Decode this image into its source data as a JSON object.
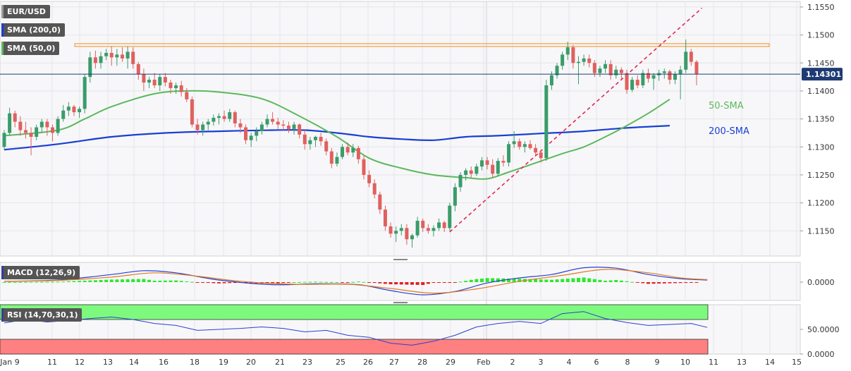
{
  "instrument": "EUR/USD",
  "legend": {
    "sma200": "SMA (200,0)",
    "sma50": "SMA (50,0)",
    "macd": "MACD (12,26,9)",
    "rsi": "RSI (14,70,30,1)"
  },
  "annotations": {
    "sma50": "50-SMA",
    "sma200": "200-SMA"
  },
  "current_price": "1.14301",
  "colors": {
    "up": "#3a9c6a",
    "down": "#e0605e",
    "sma50": "#5cb85c",
    "sma200": "#1a3fd1",
    "trendline": "#e0294a",
    "resistance": "#f0a040",
    "rsi_overbought": "#7dfa7d",
    "rsi_oversold": "#ff8080"
  },
  "chart_data": {
    "type": "candlestick",
    "y_ticks": [
      "1.1550",
      "1.1500",
      "1.1450",
      "1.1400",
      "1.1350",
      "1.1300",
      "1.1250",
      "1.1200",
      "1.1150"
    ],
    "ylim": [
      1.1105,
      1.156
    ],
    "x_labels": [
      "Jan 9",
      "11",
      "12",
      "13",
      "14",
      "16",
      "18",
      "19",
      "20",
      "21",
      "23",
      "25",
      "26",
      "27",
      "28",
      "29",
      "Feb",
      "2",
      "3",
      "4",
      "6",
      "8",
      "9",
      "10",
      "11",
      "13",
      "14",
      "15"
    ],
    "resistance_level": 1.1482,
    "sma50": [
      [
        0,
        1.132
      ],
      [
        10,
        1.133
      ],
      [
        15,
        1.135
      ],
      [
        20,
        1.1372
      ],
      [
        28,
        1.1395
      ],
      [
        34,
        1.14
      ],
      [
        40,
        1.1398
      ],
      [
        48,
        1.1386
      ],
      [
        55,
        1.1355
      ],
      [
        62,
        1.1318
      ],
      [
        68,
        1.128
      ],
      [
        74,
        1.1262
      ],
      [
        80,
        1.125
      ],
      [
        86,
        1.1245
      ],
      [
        90,
        1.1243
      ],
      [
        94,
        1.1255
      ],
      [
        98,
        1.1268
      ],
      [
        104,
        1.1288
      ],
      [
        108,
        1.13
      ],
      [
        112,
        1.1318
      ],
      [
        116,
        1.1338
      ],
      [
        120,
        1.136
      ],
      [
        124,
        1.1385
      ]
    ],
    "sma200": [
      [
        0,
        1.1295
      ],
      [
        10,
        1.1305
      ],
      [
        20,
        1.1318
      ],
      [
        30,
        1.1325
      ],
      [
        40,
        1.1328
      ],
      [
        50,
        1.133
      ],
      [
        56,
        1.133
      ],
      [
        62,
        1.1325
      ],
      [
        68,
        1.1318
      ],
      [
        74,
        1.1314
      ],
      [
        80,
        1.1312
      ],
      [
        86,
        1.1318
      ],
      [
        92,
        1.132
      ],
      [
        100,
        1.1324
      ],
      [
        108,
        1.1328
      ],
      [
        116,
        1.1334
      ],
      [
        124,
        1.1338
      ]
    ],
    "trendline": [
      [
        83,
        1.1148
      ],
      [
        130,
        1.1548
      ]
    ],
    "candles": [
      [
        1.13,
        1.133,
        1.1295,
        1.1325
      ],
      [
        1.1325,
        1.137,
        1.132,
        1.136
      ],
      [
        1.136,
        1.1365,
        1.1335,
        1.1345
      ],
      [
        1.1345,
        1.1355,
        1.132,
        1.133
      ],
      [
        1.133,
        1.1345,
        1.1315,
        1.1325
      ],
      [
        1.1325,
        1.1335,
        1.1285,
        1.1318
      ],
      [
        1.1318,
        1.134,
        1.1312,
        1.1335
      ],
      [
        1.1335,
        1.135,
        1.1325,
        1.1345
      ],
      [
        1.1345,
        1.135,
        1.132,
        1.1335
      ],
      [
        1.1335,
        1.134,
        1.131,
        1.1325
      ],
      [
        1.1325,
        1.1355,
        1.132,
        1.135
      ],
      [
        1.135,
        1.1375,
        1.1345,
        1.1365
      ],
      [
        1.1365,
        1.138,
        1.1355,
        1.1372
      ],
      [
        1.1372,
        1.1375,
        1.1355,
        1.1362
      ],
      [
        1.1362,
        1.1372,
        1.1352,
        1.1368
      ],
      [
        1.1368,
        1.143,
        1.136,
        1.1425
      ],
      [
        1.1425,
        1.147,
        1.1415,
        1.146
      ],
      [
        1.146,
        1.1472,
        1.144,
        1.145
      ],
      [
        1.145,
        1.147,
        1.144,
        1.1462
      ],
      [
        1.1462,
        1.1475,
        1.1455,
        1.1468
      ],
      [
        1.1468,
        1.148,
        1.1445,
        1.146
      ],
      [
        1.146,
        1.1475,
        1.1445,
        1.1465
      ],
      [
        1.1465,
        1.1478,
        1.1452,
        1.1458
      ],
      [
        1.1458,
        1.148,
        1.144,
        1.147
      ],
      [
        1.147,
        1.1478,
        1.144,
        1.1448
      ],
      [
        1.1448,
        1.1452,
        1.142,
        1.143
      ],
      [
        1.143,
        1.144,
        1.14,
        1.1415
      ],
      [
        1.1415,
        1.1425,
        1.1405,
        1.142
      ],
      [
        1.142,
        1.1432,
        1.1405,
        1.141
      ],
      [
        1.141,
        1.143,
        1.14,
        1.1425
      ],
      [
        1.1425,
        1.1432,
        1.1408,
        1.1415
      ],
      [
        1.1415,
        1.142,
        1.1395,
        1.1405
      ],
      [
        1.1405,
        1.1415,
        1.1395,
        1.141
      ],
      [
        1.141,
        1.1418,
        1.139,
        1.1398
      ],
      [
        1.1398,
        1.1405,
        1.138,
        1.1385
      ],
      [
        1.1385,
        1.139,
        1.1335,
        1.134
      ],
      [
        1.134,
        1.135,
        1.1322,
        1.133
      ],
      [
        1.133,
        1.1345,
        1.132,
        1.134
      ],
      [
        1.134,
        1.135,
        1.133,
        1.1345
      ],
      [
        1.1345,
        1.1358,
        1.1338,
        1.1352
      ],
      [
        1.1352,
        1.136,
        1.134,
        1.1355
      ],
      [
        1.1355,
        1.1365,
        1.1345,
        1.135
      ],
      [
        1.135,
        1.1368,
        1.1345,
        1.1362
      ],
      [
        1.1362,
        1.1365,
        1.1335,
        1.1342
      ],
      [
        1.1342,
        1.135,
        1.1325,
        1.1335
      ],
      [
        1.1335,
        1.134,
        1.1305,
        1.1312
      ],
      [
        1.1312,
        1.1325,
        1.13,
        1.132
      ],
      [
        1.132,
        1.1335,
        1.131,
        1.1328
      ],
      [
        1.1328,
        1.1345,
        1.1322,
        1.134
      ],
      [
        1.134,
        1.1358,
        1.1335,
        1.135
      ],
      [
        1.135,
        1.1362,
        1.134,
        1.1345
      ],
      [
        1.1345,
        1.1352,
        1.1332,
        1.134
      ],
      [
        1.134,
        1.1348,
        1.133,
        1.1338
      ],
      [
        1.1338,
        1.1345,
        1.1325,
        1.1332
      ],
      [
        1.1332,
        1.1345,
        1.1322,
        1.134
      ],
      [
        1.134,
        1.1342,
        1.1315,
        1.1322
      ],
      [
        1.1322,
        1.133,
        1.1295,
        1.1305
      ],
      [
        1.1305,
        1.1318,
        1.1295,
        1.1312
      ],
      [
        1.1312,
        1.132,
        1.13,
        1.1318
      ],
      [
        1.1318,
        1.1325,
        1.1302,
        1.131
      ],
      [
        1.131,
        1.1315,
        1.1285,
        1.1292
      ],
      [
        1.1292,
        1.1298,
        1.1262,
        1.127
      ],
      [
        1.127,
        1.129,
        1.1265,
        1.1282
      ],
      [
        1.1282,
        1.1305,
        1.1278,
        1.13
      ],
      [
        1.13,
        1.1308,
        1.1285,
        1.129
      ],
      [
        1.129,
        1.1305,
        1.1282,
        1.1298
      ],
      [
        1.1298,
        1.1302,
        1.127,
        1.1278
      ],
      [
        1.1278,
        1.1285,
        1.1242,
        1.125
      ],
      [
        1.125,
        1.1258,
        1.1228,
        1.1235
      ],
      [
        1.1235,
        1.1242,
        1.1208,
        1.1215
      ],
      [
        1.1215,
        1.122,
        1.118,
        1.1188
      ],
      [
        1.1188,
        1.1195,
        1.115,
        1.1158
      ],
      [
        1.1158,
        1.1165,
        1.1138,
        1.1145
      ],
      [
        1.1145,
        1.1158,
        1.113,
        1.115
      ],
      [
        1.115,
        1.1162,
        1.1142,
        1.1155
      ],
      [
        1.1155,
        1.1162,
        1.1125,
        1.1135
      ],
      [
        1.1135,
        1.1145,
        1.112,
        1.1142
      ],
      [
        1.1142,
        1.1175,
        1.1138,
        1.1168
      ],
      [
        1.1168,
        1.1172,
        1.1148,
        1.1155
      ],
      [
        1.1155,
        1.1162,
        1.1145,
        1.115
      ],
      [
        1.115,
        1.116,
        1.114,
        1.1155
      ],
      [
        1.1155,
        1.1172,
        1.115,
        1.1165
      ],
      [
        1.1165,
        1.1168,
        1.1148,
        1.1155
      ],
      [
        1.1155,
        1.12,
        1.115,
        1.1195
      ],
      [
        1.1195,
        1.1235,
        1.1185,
        1.1228
      ],
      [
        1.1228,
        1.1255,
        1.122,
        1.125
      ],
      [
        1.125,
        1.1262,
        1.124,
        1.1258
      ],
      [
        1.1258,
        1.1265,
        1.1245,
        1.1252
      ],
      [
        1.1252,
        1.127,
        1.1248,
        1.1265
      ],
      [
        1.1265,
        1.1282,
        1.1258,
        1.1276
      ],
      [
        1.1276,
        1.1282,
        1.126,
        1.1268
      ],
      [
        1.1268,
        1.1278,
        1.1245,
        1.1252
      ],
      [
        1.1252,
        1.128,
        1.1248,
        1.1275
      ],
      [
        1.1275,
        1.1285,
        1.1265,
        1.1272
      ],
      [
        1.1272,
        1.131,
        1.1265,
        1.1305
      ],
      [
        1.1305,
        1.1328,
        1.1298,
        1.131
      ],
      [
        1.131,
        1.1315,
        1.1295,
        1.13
      ],
      [
        1.13,
        1.131,
        1.129,
        1.1305
      ],
      [
        1.1305,
        1.1312,
        1.1295,
        1.1298
      ],
      [
        1.1298,
        1.1305,
        1.1285,
        1.129
      ],
      [
        1.129,
        1.1295,
        1.1272,
        1.128
      ],
      [
        1.128,
        1.142,
        1.1275,
        1.141
      ],
      [
        1.141,
        1.1435,
        1.1402,
        1.1428
      ],
      [
        1.1428,
        1.145,
        1.1422,
        1.1445
      ],
      [
        1.1445,
        1.147,
        1.1438,
        1.1465
      ],
      [
        1.1465,
        1.1488,
        1.1455,
        1.1478
      ],
      [
        1.1478,
        1.1482,
        1.144,
        1.145
      ],
      [
        1.145,
        1.1462,
        1.1412,
        1.1452
      ],
      [
        1.1452,
        1.1465,
        1.1445,
        1.1458
      ],
      [
        1.1458,
        1.1465,
        1.1442,
        1.145
      ],
      [
        1.145,
        1.1455,
        1.1425,
        1.1432
      ],
      [
        1.1432,
        1.1445,
        1.1425,
        1.144
      ],
      [
        1.144,
        1.1455,
        1.1432,
        1.1448
      ],
      [
        1.1448,
        1.1455,
        1.142,
        1.1428
      ],
      [
        1.1428,
        1.1445,
        1.1422,
        1.1438
      ],
      [
        1.1438,
        1.1442,
        1.1422,
        1.1432
      ],
      [
        1.1432,
        1.1438,
        1.1395,
        1.1402
      ],
      [
        1.1402,
        1.1425,
        1.1398,
        1.142
      ],
      [
        1.142,
        1.1428,
        1.1405,
        1.141
      ],
      [
        1.141,
        1.1438,
        1.1405,
        1.1432
      ],
      [
        1.1432,
        1.144,
        1.1415,
        1.1422
      ],
      [
        1.1422,
        1.1432,
        1.1402,
        1.1428
      ],
      [
        1.1428,
        1.1438,
        1.1418,
        1.1432
      ],
      [
        1.1432,
        1.144,
        1.1422,
        1.1435
      ],
      [
        1.1435,
        1.1438,
        1.1412,
        1.142
      ],
      [
        1.142,
        1.1435,
        1.1412,
        1.143
      ],
      [
        1.143,
        1.1445,
        1.1385,
        1.1438
      ],
      [
        1.1438,
        1.1492,
        1.1432,
        1.147
      ],
      [
        1.147,
        1.1475,
        1.1445,
        1.1452
      ],
      [
        1.1452,
        1.1455,
        1.141,
        1.143
      ]
    ],
    "macd": {
      "zero_label": "0.0000",
      "macd_line": [
        [
          0,
          0.02
        ],
        [
          10,
          0.05
        ],
        [
          20,
          0.18
        ],
        [
          26,
          0.27
        ],
        [
          32,
          0.22
        ],
        [
          40,
          0.05
        ],
        [
          50,
          -0.06
        ],
        [
          58,
          -0.04
        ],
        [
          66,
          -0.06
        ],
        [
          72,
          -0.2
        ],
        [
          78,
          -0.3
        ],
        [
          84,
          -0.22
        ],
        [
          90,
          -0.02
        ],
        [
          96,
          0.1
        ],
        [
          102,
          0.18
        ],
        [
          108,
          0.34
        ],
        [
          114,
          0.33
        ],
        [
          120,
          0.18
        ],
        [
          126,
          0.08
        ],
        [
          131,
          0.05
        ]
      ],
      "signal_line": [
        [
          0,
          0.02
        ],
        [
          10,
          0.04
        ],
        [
          20,
          0.12
        ],
        [
          28,
          0.22
        ],
        [
          36,
          0.14
        ],
        [
          44,
          0.02
        ],
        [
          54,
          -0.05
        ],
        [
          64,
          -0.05
        ],
        [
          72,
          -0.15
        ],
        [
          80,
          -0.26
        ],
        [
          88,
          -0.16
        ],
        [
          96,
          0.02
        ],
        [
          104,
          0.16
        ],
        [
          112,
          0.3
        ],
        [
          120,
          0.22
        ],
        [
          126,
          0.1
        ],
        [
          131,
          0.06
        ]
      ]
    },
    "rsi": {
      "ticks": [
        "50.0000",
        "0.0000"
      ],
      "line": [
        [
          0,
          63
        ],
        [
          4,
          70
        ],
        [
          8,
          65
        ],
        [
          12,
          68
        ],
        [
          16,
          72
        ],
        [
          20,
          75
        ],
        [
          24,
          70
        ],
        [
          28,
          62
        ],
        [
          32,
          58
        ],
        [
          36,
          48
        ],
        [
          40,
          50
        ],
        [
          44,
          52
        ],
        [
          48,
          55
        ],
        [
          52,
          52
        ],
        [
          56,
          45
        ],
        [
          60,
          48
        ],
        [
          64,
          38
        ],
        [
          68,
          34
        ],
        [
          72,
          22
        ],
        [
          76,
          18
        ],
        [
          80,
          26
        ],
        [
          84,
          38
        ],
        [
          88,
          55
        ],
        [
          92,
          62
        ],
        [
          96,
          66
        ],
        [
          100,
          62
        ],
        [
          104,
          82
        ],
        [
          108,
          86
        ],
        [
          112,
          72
        ],
        [
          116,
          64
        ],
        [
          120,
          58
        ],
        [
          124,
          60
        ],
        [
          128,
          62
        ],
        [
          131,
          54
        ]
      ]
    }
  }
}
